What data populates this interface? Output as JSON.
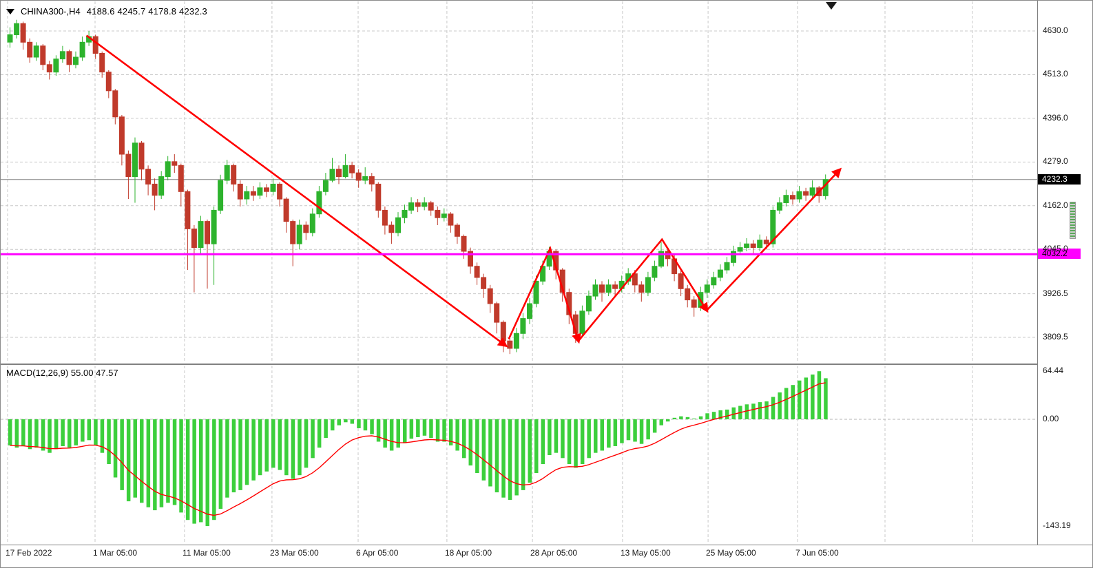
{
  "header": {
    "symbol_text": "CHINA300-,H4",
    "ohlc_text": "4188.6 4245.7 4178.8 4232.3"
  },
  "colors": {
    "bull": "#2db32d",
    "bear": "#c03a2b",
    "macd_hist": "#3ccf3c",
    "signal_line": "#ff0000",
    "arrow": "#ff0000",
    "horizontal_line": "#ff00ff",
    "grid": "#c9c9c9",
    "current_price_line": "#808080",
    "current_price_bg": "#000000",
    "text": "#1a1a1a"
  },
  "chart_data": {
    "type": "candlestick",
    "title": "CHINA300-,H4 4188.6 4245.7 4178.8 4232.3",
    "symbol": "CHINA300-",
    "timeframe": "H4",
    "current_ohlc": {
      "open": 4188.6,
      "high": 4245.7,
      "low": 4178.8,
      "close": 4232.3
    },
    "price_axis": {
      "ticks": [
        {
          "label": "4630.0",
          "value": 4630.0
        },
        {
          "label": "4513.0",
          "value": 4513.0
        },
        {
          "label": "4396.0",
          "value": 4396.0
        },
        {
          "label": "4279.0",
          "value": 4279.0
        },
        {
          "label": "4162.0",
          "value": 4162.0
        },
        {
          "label": "4045.0",
          "value": 4045.0
        },
        {
          "label": "3926.5",
          "value": 3926.5
        },
        {
          "label": "3809.5",
          "value": 3809.5
        }
      ],
      "current_price": 4232.3,
      "current_price_label": "4232.3",
      "horizontal_line": 4032.2,
      "horizontal_line_label": "4032.2",
      "visible_range": [
        3739,
        4696
      ]
    },
    "time_axis": {
      "labels": [
        {
          "text": "17 Feb 2022",
          "bar": 0
        },
        {
          "text": "1 Mar 05:00",
          "bar": 13.3
        },
        {
          "text": "11 Mar 05:00",
          "bar": 26.9
        },
        {
          "text": "23 Mar 05:00",
          "bar": 40.2
        },
        {
          "text": "6 Apr 05:00",
          "bar": 53.3
        },
        {
          "text": "18 Apr 05:00",
          "bar": 66.8
        },
        {
          "text": "28 Apr 05:00",
          "bar": 79.8
        },
        {
          "text": "13 May 05:00",
          "bar": 93.5
        },
        {
          "text": "25 May 05:00",
          "bar": 106.5
        },
        {
          "text": "7 Jun 05:00",
          "bar": 120.1
        }
      ],
      "unlabeled_gridline_bars": [
        133.4,
        146.7
      ]
    },
    "candles_format": "[open, high, low, close] per H4 bar, left to right",
    "candles": [
      [
        4600,
        4640,
        4585,
        4620
      ],
      [
        4620,
        4660,
        4610,
        4650
      ],
      [
        4650,
        4655,
        4580,
        4600
      ],
      [
        4600,
        4610,
        4545,
        4560
      ],
      [
        4560,
        4600,
        4550,
        4590
      ],
      [
        4590,
        4595,
        4525,
        4540
      ],
      [
        4540,
        4550,
        4500,
        4520
      ],
      [
        4520,
        4565,
        4510,
        4555
      ],
      [
        4555,
        4590,
        4545,
        4575
      ],
      [
        4575,
        4580,
        4520,
        4540
      ],
      [
        4540,
        4575,
        4530,
        4560
      ],
      [
        4560,
        4615,
        4550,
        4600
      ],
      [
        4600,
        4630,
        4590,
        4615
      ],
      [
        4615,
        4620,
        4555,
        4570
      ],
      [
        4570,
        4575,
        4505,
        4520
      ],
      [
        4520,
        4525,
        4450,
        4470
      ],
      [
        4470,
        4475,
        4380,
        4400
      ],
      [
        4400,
        4405,
        4270,
        4300
      ],
      [
        4300,
        4310,
        4180,
        4240
      ],
      [
        4240,
        4345,
        4170,
        4330
      ],
      [
        4330,
        4335,
        4230,
        4260
      ],
      [
        4260,
        4270,
        4190,
        4220
      ],
      [
        4220,
        4235,
        4150,
        4190
      ],
      [
        4190,
        4255,
        4180,
        4240
      ],
      [
        4240,
        4295,
        4230,
        4280
      ],
      [
        4280,
        4300,
        4250,
        4270
      ],
      [
        4270,
        4275,
        4160,
        4200
      ],
      [
        4200,
        4205,
        3990,
        4100
      ],
      [
        4100,
        4110,
        3930,
        4050
      ],
      [
        4050,
        4135,
        4030,
        4120
      ],
      [
        4120,
        4125,
        3940,
        4060
      ],
      [
        4060,
        4160,
        3950,
        4150
      ],
      [
        4150,
        4245,
        4140,
        4230
      ],
      [
        4230,
        4285,
        4220,
        4270
      ],
      [
        4270,
        4275,
        4200,
        4220
      ],
      [
        4220,
        4230,
        4160,
        4180
      ],
      [
        4180,
        4215,
        4165,
        4200
      ],
      [
        4200,
        4215,
        4175,
        4190
      ],
      [
        4190,
        4225,
        4180,
        4210
      ],
      [
        4210,
        4220,
        4185,
        4200
      ],
      [
        4200,
        4235,
        4190,
        4220
      ],
      [
        4220,
        4225,
        4160,
        4180
      ],
      [
        4180,
        4185,
        4090,
        4120
      ],
      [
        4120,
        4125,
        4000,
        4060
      ],
      [
        4060,
        4125,
        4045,
        4110
      ],
      [
        4110,
        4120,
        4070,
        4090
      ],
      [
        4090,
        4155,
        4080,
        4140
      ],
      [
        4140,
        4215,
        4130,
        4200
      ],
      [
        4200,
        4250,
        4190,
        4230
      ],
      [
        4230,
        4290,
        4225,
        4260
      ],
      [
        4260,
        4270,
        4220,
        4240
      ],
      [
        4240,
        4300,
        4235,
        4270
      ],
      [
        4270,
        4280,
        4235,
        4250
      ],
      [
        4250,
        4260,
        4210,
        4230
      ],
      [
        4230,
        4265,
        4220,
        4240
      ],
      [
        4240,
        4250,
        4200,
        4220
      ],
      [
        4220,
        4225,
        4130,
        4150
      ],
      [
        4150,
        4160,
        4085,
        4110
      ],
      [
        4110,
        4120,
        4060,
        4090
      ],
      [
        4090,
        4145,
        4080,
        4130
      ],
      [
        4130,
        4165,
        4115,
        4150
      ],
      [
        4150,
        4185,
        4140,
        4170
      ],
      [
        4170,
        4180,
        4145,
        4160
      ],
      [
        4160,
        4185,
        4150,
        4170
      ],
      [
        4170,
        4175,
        4135,
        4150
      ],
      [
        4150,
        4160,
        4110,
        4130
      ],
      [
        4130,
        4155,
        4120,
        4140
      ],
      [
        4140,
        4145,
        4090,
        4110
      ],
      [
        4110,
        4115,
        4060,
        4080
      ],
      [
        4080,
        4085,
        4020,
        4040
      ],
      [
        4040,
        4050,
        3980,
        4000
      ],
      [
        4000,
        4010,
        3950,
        3970
      ],
      [
        3970,
        3980,
        3915,
        3940
      ],
      [
        3940,
        3950,
        3875,
        3900
      ],
      [
        3900,
        3905,
        3820,
        3850
      ],
      [
        3850,
        3855,
        3770,
        3800
      ],
      [
        3800,
        3815,
        3765,
        3780
      ],
      [
        3780,
        3835,
        3770,
        3820
      ],
      [
        3820,
        3875,
        3805,
        3860
      ],
      [
        3860,
        3915,
        3845,
        3900
      ],
      [
        3900,
        3975,
        3890,
        3960
      ],
      [
        3960,
        4015,
        3950,
        4000
      ],
      [
        4000,
        4052,
        3990,
        4040
      ],
      [
        4040,
        4045,
        3965,
        3990
      ],
      [
        3990,
        3995,
        3905,
        3930
      ],
      [
        3930,
        3940,
        3845,
        3870
      ],
      [
        3870,
        3880,
        3795,
        3820
      ],
      [
        3820,
        3895,
        3810,
        3880
      ],
      [
        3880,
        3935,
        3870,
        3920
      ],
      [
        3920,
        3965,
        3910,
        3950
      ],
      [
        3950,
        3960,
        3905,
        3930
      ],
      [
        3930,
        3965,
        3920,
        3950
      ],
      [
        3950,
        3960,
        3920,
        3940
      ],
      [
        3940,
        3975,
        3930,
        3960
      ],
      [
        3960,
        3995,
        3950,
        3980
      ],
      [
        3980,
        3990,
        3930,
        3950
      ],
      [
        3950,
        3960,
        3905,
        3930
      ],
      [
        3930,
        3985,
        3920,
        3970
      ],
      [
        3970,
        4015,
        3960,
        4000
      ],
      [
        4000,
        4065,
        3995,
        4040
      ],
      [
        4040,
        4050,
        4000,
        4020
      ],
      [
        4020,
        4030,
        3960,
        3980
      ],
      [
        3980,
        3990,
        3920,
        3940
      ],
      [
        3940,
        3950,
        3890,
        3910
      ],
      [
        3910,
        3920,
        3865,
        3890
      ],
      [
        3890,
        3945,
        3880,
        3930
      ],
      [
        3930,
        3965,
        3915,
        3950
      ],
      [
        3950,
        3985,
        3940,
        3970
      ],
      [
        3970,
        4005,
        3960,
        3990
      ],
      [
        3990,
        4025,
        3980,
        4010
      ],
      [
        4010,
        4055,
        4000,
        4040
      ],
      [
        4040,
        4065,
        4030,
        4050
      ],
      [
        4050,
        4075,
        4040,
        4060
      ],
      [
        4060,
        4070,
        4035,
        4050
      ],
      [
        4050,
        4085,
        4040,
        4070
      ],
      [
        4070,
        4080,
        4045,
        4060
      ],
      [
        4060,
        4160,
        4050,
        4150
      ],
      [
        4150,
        4185,
        4140,
        4170
      ],
      [
        4170,
        4205,
        4160,
        4190
      ],
      [
        4190,
        4200,
        4165,
        4180
      ],
      [
        4180,
        4215,
        4170,
        4200
      ],
      [
        4200,
        4210,
        4175,
        4190
      ],
      [
        4190,
        4230,
        4180,
        4210
      ],
      [
        4210,
        4215,
        4170,
        4188.6
      ],
      [
        4188.6,
        4245.7,
        4178.8,
        4232.3
      ]
    ],
    "annotations": {
      "description": "red trend arrows drawn on chart: long downtrend line, W-shaped zigzag at the bottom, uptrend line to upper right",
      "trend_arrows": [
        {
          "points_bar_price": [
            [
              12,
              4618
            ],
            [
              75.7,
              3788
            ]
          ]
        },
        {
          "points_bar_price": [
            [
              76.2,
              3805
            ],
            [
              82.5,
              4048
            ],
            [
              86.8,
              3800
            ]
          ]
        },
        {
          "points_bar_price": [
            [
              86.8,
              3800
            ],
            [
              99.5,
              4072
            ],
            [
              106.3,
              3882
            ]
          ]
        },
        {
          "points_bar_price": [
            [
              106.3,
              3882
            ],
            [
              126.5,
              4258
            ]
          ]
        }
      ]
    },
    "macd": {
      "title": "MACD(12,26,9) 55.00 47.57",
      "params": [
        12,
        26,
        9
      ],
      "current_macd": 55.0,
      "current_signal": 47.57,
      "axis_ticks": [
        {
          "label": "64.44",
          "value": 64.44
        },
        {
          "label": "0.00",
          "value": 0
        },
        {
          "label": "-143.19",
          "value": -143.19
        }
      ],
      "signal_ema_period": 9,
      "histogram": [
        -35,
        -38,
        -36,
        -40,
        -38,
        -42,
        -45,
        -40,
        -36,
        -38,
        -35,
        -30,
        -28,
        -35,
        -45,
        -60,
        -78,
        -95,
        -110,
        -105,
        -112,
        -118,
        -122,
        -118,
        -112,
        -115,
        -125,
        -135,
        -140,
        -138,
        -143.19,
        -135,
        -120,
        -105,
        -98,
        -95,
        -88,
        -82,
        -75,
        -70,
        -65,
        -68,
        -75,
        -80,
        -75,
        -65,
        -52,
        -38,
        -25,
        -15,
        -8,
        -4,
        -6,
        -12,
        -15,
        -20,
        -30,
        -38,
        -42,
        -38,
        -32,
        -26,
        -24,
        -22,
        -25,
        -30,
        -30,
        -35,
        -42,
        -52,
        -62,
        -72,
        -82,
        -90,
        -98,
        -105,
        -108,
        -102,
        -95,
        -85,
        -72,
        -60,
        -48,
        -45,
        -52,
        -60,
        -65,
        -60,
        -52,
        -45,
        -42,
        -38,
        -36,
        -32,
        -28,
        -30,
        -33,
        -27,
        -18,
        -8,
        -3,
        2,
        4,
        3,
        1,
        4,
        8,
        10,
        12,
        13,
        16,
        18,
        20,
        21,
        23,
        24,
        30,
        36,
        42,
        46,
        52,
        56,
        60,
        64.44,
        55
      ]
    }
  }
}
